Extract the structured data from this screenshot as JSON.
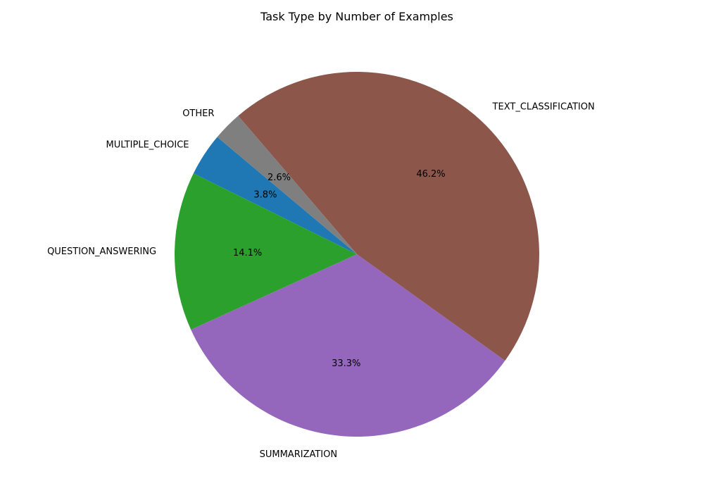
{
  "chart_data": {
    "type": "pie",
    "title": "Task Type by Number of Examples",
    "categories": [
      "MULTIPLE_CHOICE",
      "QUESTION_ANSWERING",
      "SUMMARIZATION",
      "TEXT_CLASSIFICATION",
      "OTHER"
    ],
    "values": [
      3.8,
      14.1,
      33.3,
      46.2,
      2.6
    ],
    "percent_labels": [
      "3.8%",
      "14.1%",
      "33.3%",
      "46.2%",
      "2.6%"
    ],
    "colors": [
      "#1f77b4",
      "#2ca02c",
      "#9467bd",
      "#8c564b",
      "#7f7f7f"
    ],
    "start_angle_deg": 140,
    "direction": "counterclockwise"
  }
}
